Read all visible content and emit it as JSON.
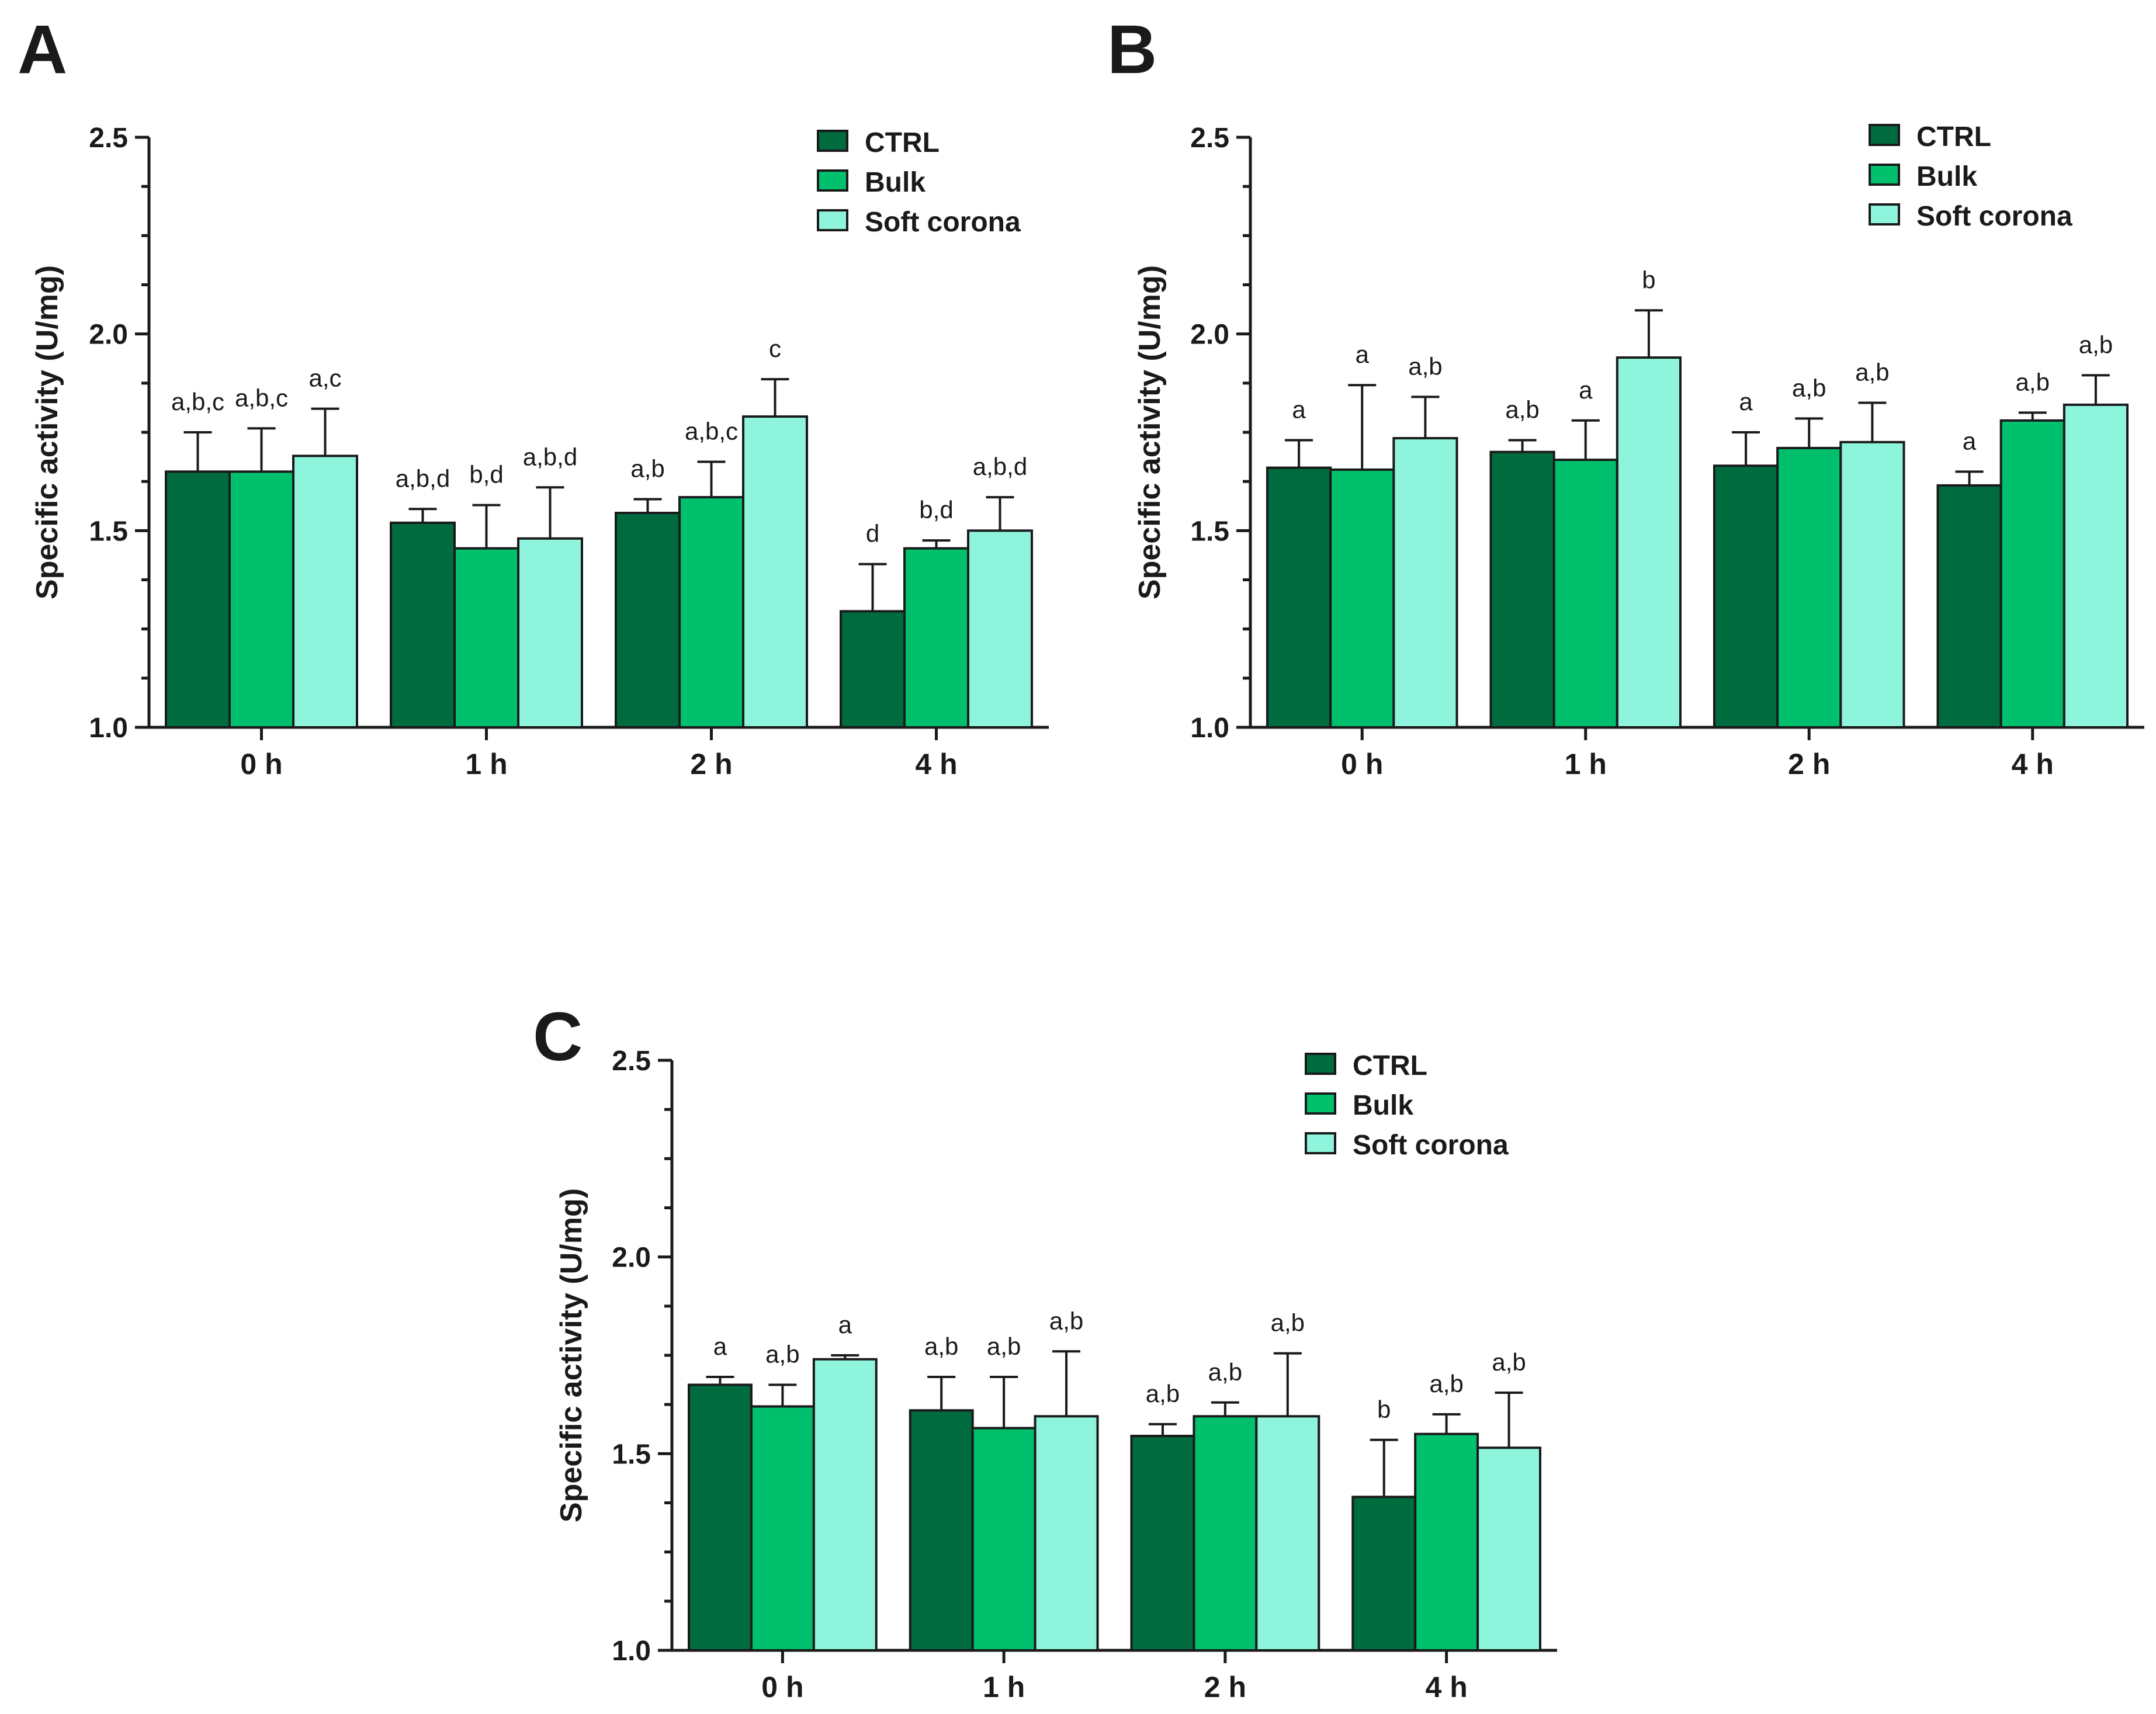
{
  "colors": {
    "CTRL": "#006b3f",
    "Bulk": "#00c06e",
    "Soft corona": "#8ef5dc"
  },
  "chart_data": [
    {
      "panel": "A",
      "type": "bar",
      "title": "",
      "xlabel": "",
      "ylabel": "Specific activity (U/mg)",
      "ylim": [
        1.0,
        2.5
      ],
      "yticks": [
        "1.0",
        "1.5",
        "2.0",
        "2.5"
      ],
      "ytick_values": [
        1.0,
        1.5,
        2.0,
        2.5
      ],
      "categories": [
        "0 h",
        "1 h",
        "2 h",
        "4 h"
      ],
      "legend": "top-right",
      "series": [
        {
          "name": "CTRL",
          "values": [
            1.65,
            1.52,
            1.545,
            1.295
          ],
          "errors": [
            0.1,
            0.035,
            0.035,
            0.12
          ],
          "labels": [
            "a,b,c",
            "a,b,d",
            "a,b",
            "d"
          ]
        },
        {
          "name": "Bulk",
          "values": [
            1.65,
            1.455,
            1.585,
            1.455
          ],
          "errors": [
            0.11,
            0.11,
            0.09,
            0.02
          ],
          "labels": [
            "a,b,c",
            "b,d",
            "a,b,c",
            "b,d"
          ]
        },
        {
          "name": "Soft corona",
          "values": [
            1.69,
            1.48,
            1.79,
            1.5
          ],
          "errors": [
            0.12,
            0.13,
            0.095,
            0.085
          ],
          "labels": [
            "a,c",
            "a,b,d",
            "c",
            "a,b,d"
          ]
        }
      ]
    },
    {
      "panel": "B",
      "type": "bar",
      "title": "",
      "xlabel": "",
      "ylabel": "Specific activity (U/mg)",
      "ylim": [
        1.0,
        2.5
      ],
      "yticks": [
        "1.0",
        "1.5",
        "2.0",
        "2.5"
      ],
      "ytick_values": [
        1.0,
        1.5,
        2.0,
        2.5
      ],
      "categories": [
        "0 h",
        "1 h",
        "2 h",
        "4 h"
      ],
      "legend": "top-right",
      "series": [
        {
          "name": "CTRL",
          "values": [
            1.66,
            1.7,
            1.665,
            1.615
          ],
          "errors": [
            0.07,
            0.03,
            0.085,
            0.035
          ],
          "labels": [
            "a",
            "a,b",
            "a",
            "a"
          ]
        },
        {
          "name": "Bulk",
          "values": [
            1.655,
            1.68,
            1.71,
            1.78
          ],
          "errors": [
            0.215,
            0.1,
            0.075,
            0.02
          ],
          "labels": [
            "a",
            "a",
            "a,b",
            "a,b"
          ]
        },
        {
          "name": "Soft corona",
          "values": [
            1.735,
            1.94,
            1.725,
            1.82
          ],
          "errors": [
            0.105,
            0.12,
            0.1,
            0.075
          ],
          "labels": [
            "a,b",
            "b",
            "a,b",
            "a,b"
          ]
        }
      ]
    },
    {
      "panel": "C",
      "type": "bar",
      "title": "",
      "xlabel": "",
      "ylabel": "Specific activity (U/mg)",
      "ylim": [
        1.0,
        2.5
      ],
      "yticks": [
        "1.0",
        "1.5",
        "2.0",
        "2.5"
      ],
      "ytick_values": [
        1.0,
        1.5,
        2.0,
        2.5
      ],
      "categories": [
        "0 h",
        "1 h",
        "2 h",
        "4 h"
      ],
      "legend": "top-right",
      "series": [
        {
          "name": "CTRL",
          "values": [
            1.675,
            1.61,
            1.545,
            1.39
          ],
          "errors": [
            0.02,
            0.085,
            0.03,
            0.145
          ],
          "labels": [
            "a",
            "a,b",
            "a,b",
            "b"
          ]
        },
        {
          "name": "Bulk",
          "values": [
            1.62,
            1.565,
            1.595,
            1.55
          ],
          "errors": [
            0.055,
            0.13,
            0.035,
            0.05
          ],
          "labels": [
            "a,b",
            "a,b",
            "a,b",
            "a,b"
          ]
        },
        {
          "name": "Soft corona",
          "values": [
            1.74,
            1.595,
            1.595,
            1.515
          ],
          "errors": [
            0.01,
            0.165,
            0.16,
            0.14
          ],
          "labels": [
            "a",
            "a,b",
            "a,b",
            "a,b"
          ]
        }
      ]
    }
  ]
}
